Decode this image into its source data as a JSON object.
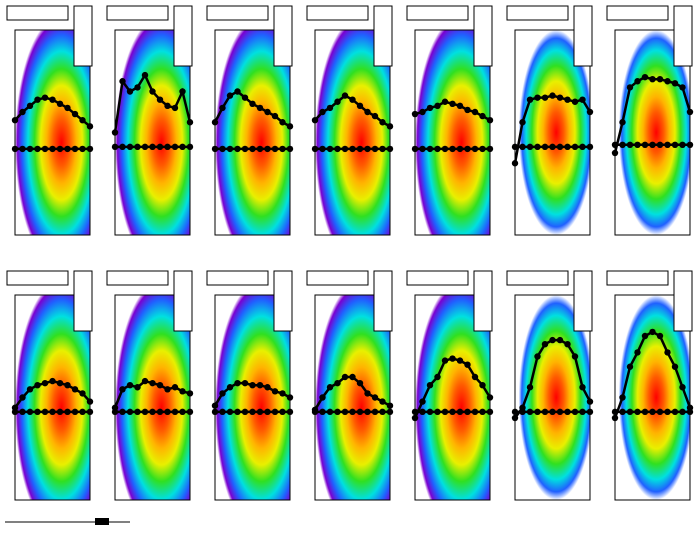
{
  "chart_data": [
    {
      "type": "scatter",
      "x": [
        0,
        1,
        2,
        3,
        4,
        5,
        6,
        7,
        8,
        9,
        10
      ],
      "xlim": [
        0,
        10
      ],
      "ylim": [
        0,
        100
      ],
      "series": [
        {
          "color": "#000000",
          "values": [
            56,
            60,
            63,
            66,
            67,
            66,
            64,
            62,
            59,
            56,
            53
          ]
        },
        {
          "color": "#000000",
          "values": [
            42,
            42,
            42,
            42,
            42,
            42,
            42,
            42,
            42,
            42,
            42
          ]
        }
      ]
    },
    {
      "type": "scatter",
      "x": [
        0,
        1,
        2,
        3,
        4,
        5,
        6,
        7,
        8,
        9,
        10
      ],
      "xlim": [
        0,
        10
      ],
      "ylim": [
        0,
        100
      ],
      "series": [
        {
          "color": "#000000",
          "values": [
            50,
            75,
            70,
            72,
            78,
            70,
            66,
            63,
            62,
            70,
            55
          ]
        },
        {
          "color": "#000000",
          "values": [
            43,
            43,
            43,
            43,
            43,
            43,
            43,
            43,
            43,
            43,
            43
          ]
        }
      ]
    },
    {
      "type": "scatter",
      "x": [
        0,
        1,
        2,
        3,
        4,
        5,
        6,
        7,
        8,
        9,
        10
      ],
      "xlim": [
        0,
        10
      ],
      "ylim": [
        0,
        100
      ],
      "series": [
        {
          "color": "#000000",
          "values": [
            55,
            62,
            68,
            70,
            67,
            64,
            62,
            60,
            58,
            55,
            53
          ]
        },
        {
          "color": "#000000",
          "values": [
            42,
            42,
            42,
            42,
            42,
            42,
            42,
            42,
            42,
            42,
            42
          ]
        }
      ]
    },
    {
      "type": "scatter",
      "x": [
        0,
        1,
        2,
        3,
        4,
        5,
        6,
        7,
        8,
        9,
        10
      ],
      "xlim": [
        0,
        10
      ],
      "ylim": [
        0,
        100
      ],
      "series": [
        {
          "color": "#000000",
          "values": [
            56,
            60,
            62,
            65,
            68,
            66,
            63,
            60,
            58,
            55,
            53
          ]
        },
        {
          "color": "#000000",
          "values": [
            42,
            42,
            42,
            42,
            42,
            42,
            42,
            42,
            42,
            42,
            42
          ]
        }
      ]
    },
    {
      "type": "scatter",
      "x": [
        0,
        1,
        2,
        3,
        4,
        5,
        6,
        7,
        8,
        9,
        10
      ],
      "xlim": [
        0,
        10
      ],
      "ylim": [
        0,
        100
      ],
      "series": [
        {
          "color": "#000000",
          "values": [
            59,
            60,
            62,
            63,
            65,
            64,
            63,
            61,
            60,
            58,
            56
          ]
        },
        {
          "color": "#000000",
          "values": [
            42,
            42,
            42,
            42,
            42,
            42,
            42,
            42,
            42,
            42,
            42
          ]
        }
      ]
    },
    {
      "type": "scatter",
      "x": [
        0,
        1,
        2,
        3,
        4,
        5,
        6,
        7,
        8,
        9,
        10
      ],
      "xlim": [
        0,
        10
      ],
      "ylim": [
        0,
        100
      ],
      "series": [
        {
          "color": "#000000",
          "values": [
            35,
            55,
            66,
            67,
            67,
            68,
            67,
            66,
            65,
            66,
            60
          ]
        },
        {
          "color": "#000000",
          "values": [
            43,
            43,
            43,
            43,
            43,
            43,
            43,
            43,
            43,
            43,
            43
          ]
        }
      ]
    },
    {
      "type": "scatter",
      "x": [
        0,
        1,
        2,
        3,
        4,
        5,
        6,
        7,
        8,
        9,
        10
      ],
      "xlim": [
        0,
        10
      ],
      "ylim": [
        0,
        100
      ],
      "series": [
        {
          "color": "#000000",
          "values": [
            40,
            55,
            72,
            75,
            77,
            76,
            76,
            75,
            74,
            72,
            60
          ]
        },
        {
          "color": "#000000",
          "values": [
            44,
            44,
            44,
            44,
            44,
            44,
            44,
            44,
            44,
            44,
            44
          ]
        }
      ]
    },
    {
      "type": "scatter",
      "x": [
        0,
        1,
        2,
        3,
        4,
        5,
        6,
        7,
        8,
        9,
        10
      ],
      "xlim": [
        0,
        10
      ],
      "ylim": [
        0,
        100
      ],
      "series": [
        {
          "color": "#000000",
          "values": [
            45,
            50,
            54,
            56,
            57,
            58,
            57,
            56,
            54,
            52,
            48
          ]
        },
        {
          "color": "#000000",
          "values": [
            43,
            43,
            43,
            43,
            43,
            43,
            43,
            43,
            43,
            43,
            43
          ]
        }
      ]
    },
    {
      "type": "scatter",
      "x": [
        0,
        1,
        2,
        3,
        4,
        5,
        6,
        7,
        8,
        9,
        10
      ],
      "xlim": [
        0,
        10
      ],
      "ylim": [
        0,
        100
      ],
      "series": [
        {
          "color": "#000000",
          "values": [
            45,
            54,
            56,
            55,
            58,
            57,
            56,
            54,
            55,
            53,
            52
          ]
        },
        {
          "color": "#000000",
          "values": [
            43,
            43,
            43,
            43,
            43,
            43,
            43,
            43,
            43,
            43,
            43
          ]
        }
      ]
    },
    {
      "type": "scatter",
      "x": [
        0,
        1,
        2,
        3,
        4,
        5,
        6,
        7,
        8,
        9,
        10
      ],
      "xlim": [
        0,
        10
      ],
      "ylim": [
        0,
        100
      ],
      "series": [
        {
          "color": "#000000",
          "values": [
            46,
            52,
            55,
            57,
            57,
            56,
            56,
            55,
            53,
            52,
            50
          ]
        },
        {
          "color": "#000000",
          "values": [
            43,
            43,
            43,
            43,
            43,
            43,
            43,
            43,
            43,
            43,
            43
          ]
        }
      ]
    },
    {
      "type": "scatter",
      "x": [
        0,
        1,
        2,
        3,
        4,
        5,
        6,
        7,
        8,
        9,
        10
      ],
      "xlim": [
        0,
        10
      ],
      "ylim": [
        0,
        100
      ],
      "series": [
        {
          "color": "#000000",
          "values": [
            44,
            50,
            55,
            57,
            60,
            60,
            57,
            52,
            50,
            48,
            46
          ]
        },
        {
          "color": "#000000",
          "values": [
            43,
            43,
            43,
            43,
            43,
            43,
            43,
            43,
            43,
            43,
            43
          ]
        }
      ]
    },
    {
      "type": "scatter",
      "x": [
        0,
        1,
        2,
        3,
        4,
        5,
        6,
        7,
        8,
        9,
        10
      ],
      "xlim": [
        0,
        10
      ],
      "ylim": [
        0,
        100
      ],
      "series": [
        {
          "color": "#000000",
          "values": [
            40,
            48,
            56,
            60,
            68,
            69,
            68,
            66,
            60,
            56,
            50
          ]
        },
        {
          "color": "#000000",
          "values": [
            43,
            43,
            43,
            43,
            43,
            43,
            43,
            43,
            43,
            43,
            43
          ]
        }
      ]
    },
    {
      "type": "scatter",
      "x": [
        0,
        1,
        2,
        3,
        4,
        5,
        6,
        7,
        8,
        9,
        10
      ],
      "xlim": [
        0,
        10
      ],
      "ylim": [
        0,
        100
      ],
      "series": [
        {
          "color": "#000000",
          "values": [
            40,
            45,
            55,
            70,
            76,
            78,
            78,
            76,
            70,
            55,
            48
          ]
        },
        {
          "color": "#000000",
          "values": [
            43,
            43,
            43,
            43,
            43,
            43,
            43,
            43,
            43,
            43,
            43
          ]
        }
      ]
    },
    {
      "type": "scatter",
      "x": [
        0,
        1,
        2,
        3,
        4,
        5,
        6,
        7,
        8,
        9,
        10
      ],
      "xlim": [
        0,
        10
      ],
      "ylim": [
        0,
        100
      ],
      "series": [
        {
          "color": "#000000",
          "values": [
            40,
            50,
            65,
            72,
            80,
            82,
            80,
            72,
            65,
            55,
            45
          ]
        },
        {
          "color": "#000000",
          "values": [
            43,
            43,
            43,
            43,
            43,
            43,
            43,
            43,
            43,
            43,
            43
          ]
        }
      ]
    }
  ]
}
